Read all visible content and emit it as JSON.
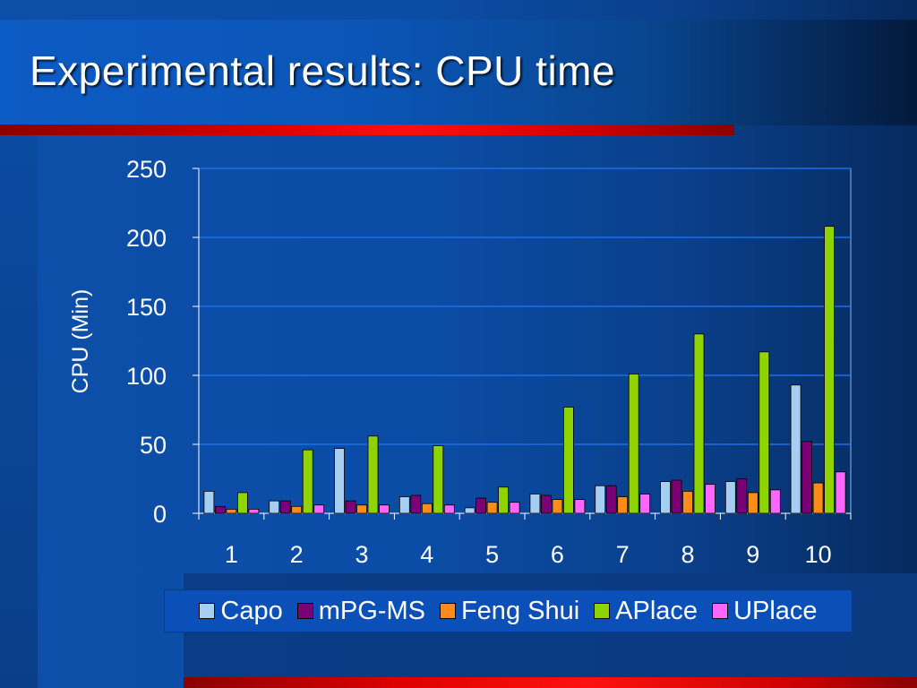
{
  "slide": {
    "title": "Experimental results: CPU time"
  },
  "colors": {
    "capo": "#a6cdf2",
    "mpg_ms": "#7a0074",
    "feng_shui": "#ff8c1a",
    "aplace": "#8fd400",
    "uplace": "#ff66ff",
    "gridline": "#1e6ee6",
    "axis_text": "#ffffff"
  },
  "chart_data": {
    "type": "bar",
    "title": "",
    "xlabel": "",
    "ylabel": "CPU (Min)",
    "ylim": [
      0,
      250
    ],
    "yticks": [
      "0",
      "50",
      "100",
      "150",
      "200",
      "250"
    ],
    "categories": [
      "1",
      "2",
      "3",
      "4",
      "5",
      "6",
      "7",
      "8",
      "9",
      "10"
    ],
    "grid": true,
    "legend_position": "bottom",
    "series": [
      {
        "name": "Capo",
        "values": [
          16,
          9,
          47,
          12,
          4,
          14,
          20,
          23,
          23,
          93
        ]
      },
      {
        "name": "mPG-MS",
        "values": [
          5,
          9,
          9,
          13,
          11,
          13,
          20,
          24,
          25,
          52
        ]
      },
      {
        "name": "Feng Shui",
        "values": [
          3,
          5,
          6,
          7,
          8,
          10,
          12,
          16,
          15,
          22
        ]
      },
      {
        "name": "APlace",
        "values": [
          15,
          46,
          56,
          49,
          19,
          77,
          101,
          130,
          117,
          208
        ]
      },
      {
        "name": "UPlace",
        "values": [
          3,
          6,
          6,
          6,
          8,
          10,
          14,
          21,
          17,
          30
        ]
      }
    ]
  }
}
